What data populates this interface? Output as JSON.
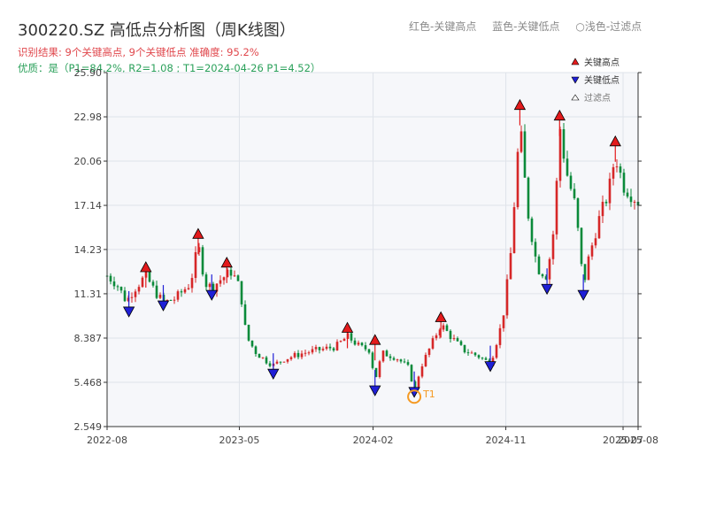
{
  "header": {
    "title": "300220.SZ 高低点分析图（周K线图）",
    "result_line": "识别结果: 9个关键高点, 9个关键低点  准确度: 95.2%",
    "quality_line": "优质：是（P1=84.2%, R2=1.08 ; T1=2024-04-26 P1=4.52）",
    "legend_red": "红色-关键高点",
    "legend_blue": "蓝色-关键低点",
    "legend_light": "○浅色-过滤点"
  },
  "colors": {
    "up": "#d62728",
    "down": "#0a8a3a",
    "high_marker": "#e31a1c",
    "low_marker": "#1f1fd6",
    "highlight": "#f59a23"
  },
  "chart_data": {
    "type": "candlestick",
    "xlabel": "",
    "ylabel": "",
    "ylim": [
      2.549,
      25.9
    ],
    "ytick_labels": [
      "2.549",
      "5.468",
      "8.387",
      "11.31",
      "14.23",
      "17.14",
      "20.06",
      "22.98",
      "25.90"
    ],
    "ytick_values": [
      2.549,
      5.468,
      8.387,
      11.31,
      14.23,
      17.14,
      20.06,
      22.98,
      25.9
    ],
    "xtick_labels": [
      "2022-08",
      "2023-05",
      "2024-02",
      "2024-11",
      "2025-07",
      "2025-08"
    ],
    "xtick_values": [
      "2022-08-01",
      "2023-05-01",
      "2024-02-01",
      "2024-11-01",
      "2025-07-01",
      "2025-08-01"
    ],
    "xlim": [
      "2022-08-01",
      "2025-08-01"
    ],
    "grid": true,
    "legend_entries": [
      "关键高点",
      "关键低点",
      "过滤点"
    ],
    "legend_position": "top-right",
    "price_path": [
      [
        "2022-08-01",
        12.5
      ],
      [
        "2022-08-20",
        12.0
      ],
      [
        "2022-09-10",
        10.8
      ],
      [
        "2022-09-25",
        11.6
      ],
      [
        "2022-10-20",
        12.5
      ],
      [
        "2022-11-05",
        11.6
      ],
      [
        "2022-11-25",
        10.7
      ],
      [
        "2022-12-20",
        11.0
      ],
      [
        "2023-01-20",
        12.0
      ],
      [
        "2023-02-05",
        14.5
      ],
      [
        "2023-02-20",
        12.0
      ],
      [
        "2023-03-05",
        11.7
      ],
      [
        "2023-03-25",
        12.3
      ],
      [
        "2023-04-15",
        12.8
      ],
      [
        "2023-04-30",
        11.8
      ],
      [
        "2023-05-08",
        10.5
      ],
      [
        "2023-05-15",
        8.5
      ],
      [
        "2023-06-05",
        7.4
      ],
      [
        "2023-06-25",
        6.9
      ],
      [
        "2023-07-10",
        6.6
      ],
      [
        "2023-08-01",
        7.0
      ],
      [
        "2023-09-10",
        7.4
      ],
      [
        "2023-10-10",
        7.6
      ],
      [
        "2023-11-15",
        7.8
      ],
      [
        "2023-12-10",
        8.5
      ],
      [
        "2024-01-05",
        7.8
      ],
      [
        "2024-01-25",
        7.6
      ],
      [
        "2024-02-05",
        5.6
      ],
      [
        "2024-02-20",
        7.4
      ],
      [
        "2024-03-20",
        7.1
      ],
      [
        "2024-04-15",
        6.4
      ],
      [
        "2024-04-26",
        4.9
      ],
      [
        "2024-05-10",
        6.5
      ],
      [
        "2024-06-01",
        8.0
      ],
      [
        "2024-06-20",
        9.3
      ],
      [
        "2024-07-10",
        8.5
      ],
      [
        "2024-08-05",
        7.6
      ],
      [
        "2024-09-05",
        7.2
      ],
      [
        "2024-09-30",
        6.7
      ],
      [
        "2024-10-25",
        9.5
      ],
      [
        "2024-11-10",
        13.5
      ],
      [
        "2024-11-30",
        22.5
      ],
      [
        "2024-12-15",
        17.0
      ],
      [
        "2025-01-05",
        13.0
      ],
      [
        "2025-01-25",
        12.5
      ],
      [
        "2025-02-10",
        16.0
      ],
      [
        "2025-02-20",
        22.5
      ],
      [
        "2025-03-05",
        19.5
      ],
      [
        "2025-03-25",
        17.0
      ],
      [
        "2025-04-10",
        11.8
      ],
      [
        "2025-04-20",
        13.5
      ],
      [
        "2025-05-10",
        16.0
      ],
      [
        "2025-06-01",
        18.0
      ],
      [
        "2025-06-15",
        20.5
      ],
      [
        "2025-07-01",
        18.5
      ],
      [
        "2025-07-20",
        17.8
      ],
      [
        "2025-08-01",
        17.4
      ]
    ],
    "key_highs": [
      {
        "date": "2022-10-20",
        "value": 13.0
      },
      {
        "date": "2023-02-05",
        "value": 15.2
      },
      {
        "date": "2023-04-05",
        "value": 13.3
      },
      {
        "date": "2023-12-10",
        "value": 9.0
      },
      {
        "date": "2024-02-05",
        "value": 8.2
      },
      {
        "date": "2024-06-20",
        "value": 9.7
      },
      {
        "date": "2024-11-30",
        "value": 23.7
      },
      {
        "date": "2025-02-20",
        "value": 23.0
      },
      {
        "date": "2025-06-15",
        "value": 21.3
      }
    ],
    "key_lows": [
      {
        "date": "2022-09-15",
        "value": 10.2
      },
      {
        "date": "2022-11-25",
        "value": 10.6
      },
      {
        "date": "2023-03-05",
        "value": 11.3
      },
      {
        "date": "2023-07-10",
        "value": 6.1
      },
      {
        "date": "2024-02-05",
        "value": 5.0
      },
      {
        "date": "2024-04-26",
        "value": 4.9
      },
      {
        "date": "2024-09-30",
        "value": 6.6
      },
      {
        "date": "2025-01-25",
        "value": 11.7
      },
      {
        "date": "2025-04-10",
        "value": 11.3
      }
    ],
    "annotations": [
      {
        "text": "T1",
        "date": "2024-04-26",
        "value": 4.52
      }
    ]
  }
}
